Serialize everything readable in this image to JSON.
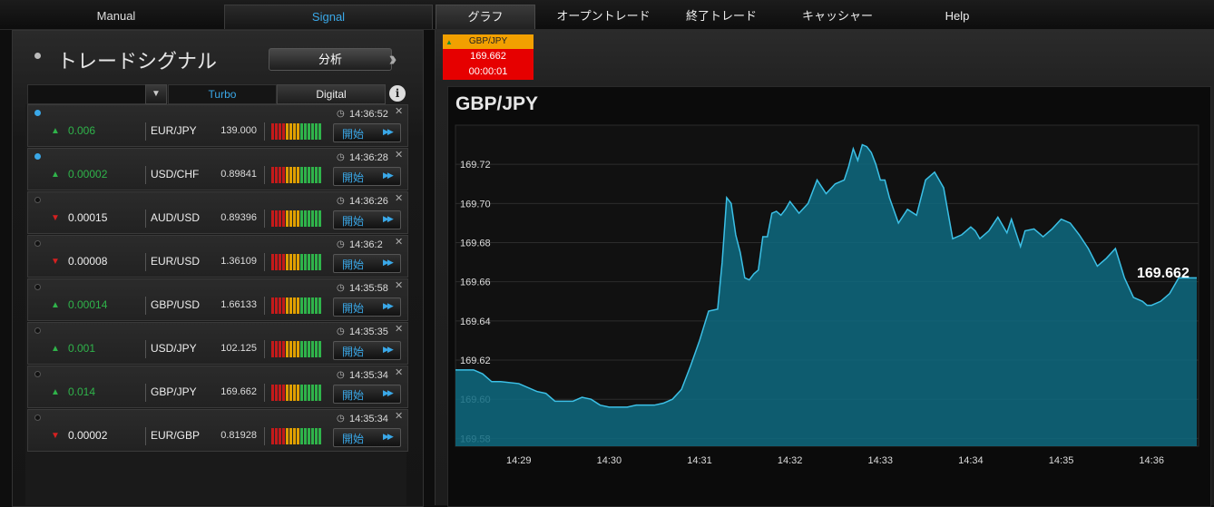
{
  "nav": {
    "left_tabs": [
      "Manual",
      "Signal"
    ],
    "right_tabs": [
      "グラフ",
      "オープントレード",
      "終了トレード",
      "キャッシャー",
      "Help"
    ]
  },
  "signals_panel": {
    "title": "トレードシグナル",
    "analyze_button": "分析",
    "filter": {
      "turbo": "Turbo",
      "digital": "Digital"
    },
    "start_label": "開始",
    "rows": [
      {
        "change": "0.006",
        "direction": "up",
        "pair": "EUR/JPY",
        "price": "139.000",
        "time": "14:36:52",
        "active": true,
        "meter_level": 1
      },
      {
        "change": "0.00002",
        "direction": "up",
        "pair": "USD/CHF",
        "price": "0.89841",
        "time": "14:36:28",
        "active": true,
        "meter_level": 1
      },
      {
        "change": "0.00015",
        "direction": "down",
        "pair": "AUD/USD",
        "price": "0.89396",
        "time": "14:36:26",
        "active": false,
        "meter_level": 1
      },
      {
        "change": "0.00008",
        "direction": "down",
        "pair": "EUR/USD",
        "price": "1.36109",
        "time": "14:36:2",
        "active": false,
        "meter_level": 1
      },
      {
        "change": "0.00014",
        "direction": "up",
        "pair": "GBP/USD",
        "price": "1.66133",
        "time": "14:35:58",
        "active": false,
        "meter_level": 1
      },
      {
        "change": "0.001",
        "direction": "up",
        "pair": "USD/JPY",
        "price": "102.125",
        "time": "14:35:35",
        "active": false,
        "meter_level": 1
      },
      {
        "change": "0.014",
        "direction": "up",
        "pair": "GBP/JPY",
        "price": "169.662",
        "time": "14:35:34",
        "active": false,
        "meter_level": 1
      },
      {
        "change": "0.00002",
        "direction": "down",
        "pair": "EUR/GBP",
        "price": "0.81928",
        "time": "14:35:34",
        "active": false,
        "meter_level": 1
      }
    ]
  },
  "ticker": {
    "pair": "GBP/JPY",
    "price": "169.662",
    "timer": "00:00:01",
    "direction": "up"
  },
  "colors": {
    "accent": "#3aa8e8",
    "up": "#2fb34a",
    "down": "#d62020",
    "ticker_orange": "#f2a000",
    "ticker_red": "#e60000",
    "area_fill": "#0e6a80",
    "line": "#3cc0e6"
  },
  "chart_data": {
    "type": "area",
    "title": "GBP/JPY",
    "last_label": "169.662",
    "ylim": [
      169.576,
      169.74
    ],
    "yticks": [
      "169.58",
      "169.60",
      "169.62",
      "169.64",
      "169.66",
      "169.68",
      "169.70",
      "169.72"
    ],
    "xlim": [
      0,
      8.22
    ],
    "xticks": [
      {
        "x": 0.7,
        "label": "14:29"
      },
      {
        "x": 1.7,
        "label": "14:30"
      },
      {
        "x": 2.7,
        "label": "14:31"
      },
      {
        "x": 3.7,
        "label": "14:32"
      },
      {
        "x": 4.7,
        "label": "14:33"
      },
      {
        "x": 5.7,
        "label": "14:34"
      },
      {
        "x": 6.7,
        "label": "14:35"
      },
      {
        "x": 7.7,
        "label": "14:36"
      }
    ],
    "x": [
      0,
      0.2,
      0.3,
      0.4,
      0.5,
      0.7,
      0.9,
      1.0,
      1.1,
      1.3,
      1.4,
      1.5,
      1.6,
      1.7,
      1.8,
      1.9,
      2.0,
      2.1,
      2.2,
      2.3,
      2.4,
      2.5,
      2.6,
      2.7,
      2.8,
      2.9,
      2.95,
      3.0,
      3.05,
      3.1,
      3.15,
      3.2,
      3.25,
      3.3,
      3.35,
      3.4,
      3.45,
      3.5,
      3.55,
      3.6,
      3.65,
      3.7,
      3.8,
      3.9,
      4.0,
      4.1,
      4.2,
      4.3,
      4.35,
      4.4,
      4.45,
      4.5,
      4.55,
      4.6,
      4.65,
      4.7,
      4.75,
      4.8,
      4.9,
      5.0,
      5.1,
      5.2,
      5.3,
      5.4,
      5.5,
      5.6,
      5.7,
      5.75,
      5.8,
      5.9,
      6.0,
      6.1,
      6.15,
      6.2,
      6.25,
      6.3,
      6.4,
      6.5,
      6.6,
      6.7,
      6.8,
      6.9,
      7.0,
      7.1,
      7.2,
      7.3,
      7.4,
      7.5,
      7.6,
      7.65,
      7.7,
      7.8,
      7.9,
      8.0,
      8.1,
      8.2
    ],
    "y": [
      169.615,
      169.615,
      169.613,
      169.609,
      169.609,
      169.608,
      169.604,
      169.603,
      169.599,
      169.599,
      169.601,
      169.6,
      169.597,
      169.596,
      169.596,
      169.596,
      169.597,
      169.597,
      169.597,
      169.598,
      169.6,
      169.605,
      169.617,
      169.63,
      169.645,
      169.646,
      169.67,
      169.703,
      169.7,
      169.684,
      169.675,
      169.662,
      169.661,
      169.664,
      169.666,
      169.683,
      169.683,
      169.695,
      169.696,
      169.694,
      169.697,
      169.701,
      169.695,
      169.7,
      169.712,
      169.705,
      169.71,
      169.712,
      169.719,
      169.728,
      169.722,
      169.73,
      169.729,
      169.726,
      169.72,
      169.712,
      169.712,
      169.703,
      169.69,
      169.697,
      169.694,
      169.712,
      169.716,
      169.708,
      169.682,
      169.684,
      169.688,
      169.686,
      169.682,
      169.686,
      169.693,
      169.685,
      169.692,
      169.685,
      169.678,
      169.686,
      169.687,
      169.683,
      169.687,
      169.692,
      169.69,
      169.684,
      169.677,
      169.668,
      169.672,
      169.677,
      169.662,
      169.652,
      169.65,
      169.648,
      169.648,
      169.65,
      169.654,
      169.662,
      169.662,
      169.662
    ]
  }
}
